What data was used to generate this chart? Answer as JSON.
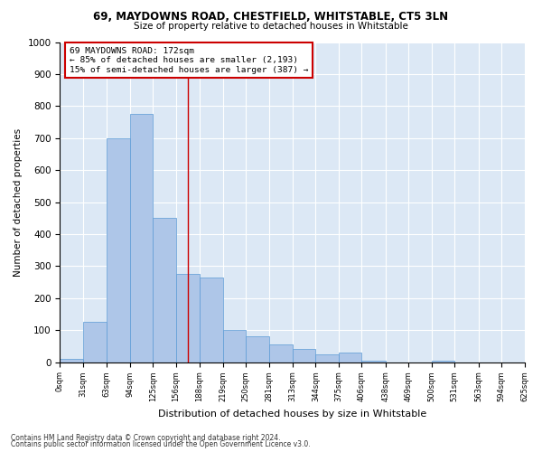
{
  "title1": "69, MAYDOWNS ROAD, CHESTFIELD, WHITSTABLE, CT5 3LN",
  "title2": "Size of property relative to detached houses in Whitstable",
  "xlabel": "Distribution of detached houses by size in Whitstable",
  "ylabel": "Number of detached properties",
  "footnote1": "Contains HM Land Registry data © Crown copyright and database right 2024.",
  "footnote2": "Contains public sector information licensed under the Open Government Licence v3.0.",
  "annotation_line1": "69 MAYDOWNS ROAD: 172sqm",
  "annotation_line2": "← 85% of detached houses are smaller (2,193)",
  "annotation_line3": "15% of semi-detached houses are larger (387) →",
  "property_size": 172,
  "bin_edges": [
    0,
    31,
    63,
    94,
    125,
    156,
    188,
    219,
    250,
    281,
    313,
    344,
    375,
    406,
    438,
    469,
    500,
    531,
    563,
    594,
    625
  ],
  "bar_values": [
    10,
    125,
    700,
    775,
    450,
    275,
    265,
    100,
    80,
    55,
    40,
    25,
    30,
    5,
    0,
    0,
    5,
    0,
    0,
    0
  ],
  "bar_color": "#aec6e8",
  "bar_edge_color": "#5b9bd5",
  "line_color": "#cc0000",
  "bg_color": "#dce8f5",
  "annotation_box_color": "#cc0000",
  "ylim": [
    0,
    1000
  ],
  "yticks": [
    0,
    100,
    200,
    300,
    400,
    500,
    600,
    700,
    800,
    900,
    1000
  ]
}
